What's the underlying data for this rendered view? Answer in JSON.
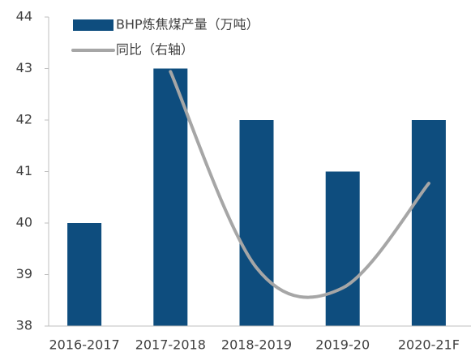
{
  "chart_data": {
    "type": "bar",
    "categories": [
      "2016-2017",
      "2017-2018",
      "2018-2019",
      "2019-20",
      "2020-21F"
    ],
    "series": [
      {
        "name": "BHP炼焦煤产量（万吨）",
        "type": "bar",
        "color": "#0e4d7e",
        "values": [
          40,
          43,
          42,
          41,
          42
        ]
      },
      {
        "name": "同比（右轴）",
        "type": "line",
        "color": "#a6a6a6",
        "values": [
          null,
          42.94,
          39.13,
          38.74,
          40.77
        ]
      }
    ],
    "ylim": [
      38,
      44
    ],
    "yticks": [
      38,
      39,
      40,
      41,
      42,
      43,
      44
    ],
    "legend": "upper left"
  }
}
